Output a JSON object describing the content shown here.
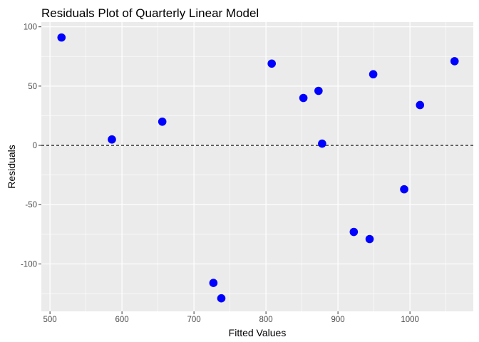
{
  "chart_data": {
    "type": "scatter",
    "title": "Residuals Plot of Quarterly Linear Model",
    "xlabel": "Fitted Values",
    "ylabel": "Residuals",
    "xlim": [
      488,
      1088
    ],
    "ylim": [
      -140,
      104
    ],
    "x_ticks": [
      500,
      600,
      700,
      800,
      900,
      1000
    ],
    "x_minor_ticks": [
      550,
      650,
      750,
      850,
      950,
      1050
    ],
    "y_ticks": [
      -100,
      -50,
      0,
      50,
      100
    ],
    "y_minor_ticks": [
      -125,
      -75,
      -25,
      25,
      75
    ],
    "reference_line": {
      "y": 0,
      "style": "dashed",
      "color": "#000000"
    },
    "grid": true,
    "panel_color": "#ebebeb",
    "grid_color": "#ffffff",
    "point_color": "#0000ff",
    "points": [
      {
        "x": 516,
        "y": 91
      },
      {
        "x": 586,
        "y": 5
      },
      {
        "x": 656,
        "y": 20
      },
      {
        "x": 727,
        "y": -116
      },
      {
        "x": 738,
        "y": -129
      },
      {
        "x": 808,
        "y": 69
      },
      {
        "x": 852,
        "y": 40
      },
      {
        "x": 873,
        "y": 46
      },
      {
        "x": 878,
        "y": 1.5
      },
      {
        "x": 922,
        "y": -73
      },
      {
        "x": 944,
        "y": -79
      },
      {
        "x": 949,
        "y": 60
      },
      {
        "x": 992,
        "y": -37
      },
      {
        "x": 1014,
        "y": 34
      },
      {
        "x": 1062,
        "y": 71
      }
    ]
  }
}
